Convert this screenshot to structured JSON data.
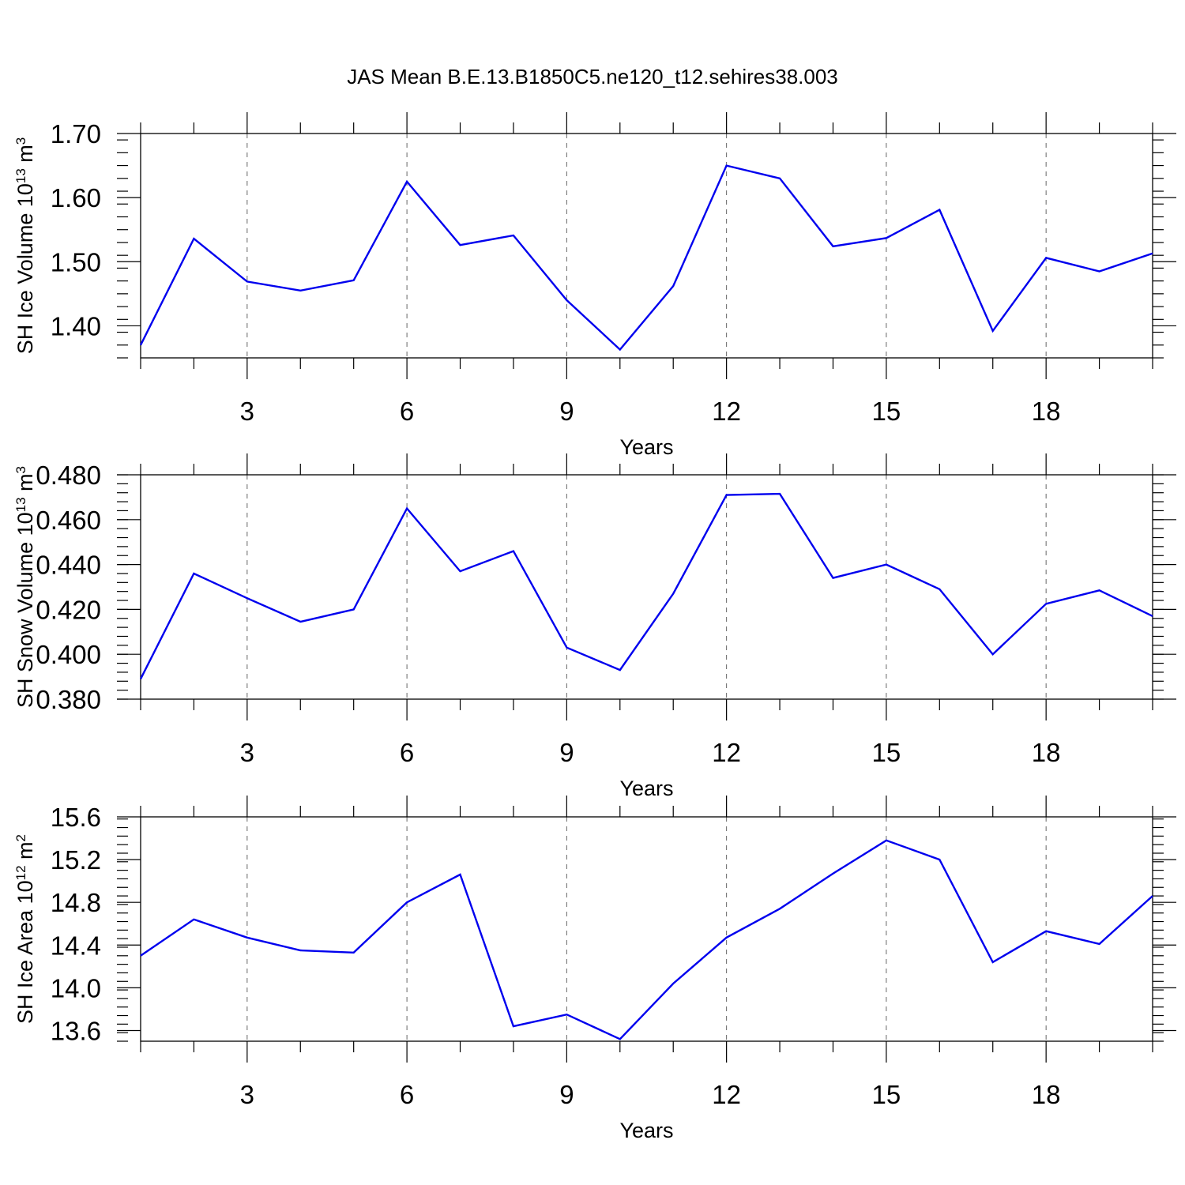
{
  "figure_title": "JAS Mean B.E.13.B1850C5.ne120_t12.sehires38.003",
  "line_color": "#0000ee",
  "chart_data": [
    {
      "type": "line",
      "title": "",
      "xlabel": "Years",
      "ylabel_parts": [
        {
          "text": "SH Ice Volume 10",
          "sup": false
        },
        {
          "text": "13",
          "sup": true
        },
        {
          "text": " m",
          "sup": false
        },
        {
          "text": "3",
          "sup": true
        }
      ],
      "x": [
        1,
        2,
        3,
        4,
        5,
        6,
        7,
        8,
        9,
        10,
        11,
        12,
        13,
        14,
        15,
        16,
        17,
        18,
        19,
        20
      ],
      "values": [
        1.37,
        1.536,
        1.469,
        1.455,
        1.471,
        1.625,
        1.526,
        1.541,
        1.44,
        1.363,
        1.462,
        1.65,
        1.63,
        1.524,
        1.537,
        1.581,
        1.392,
        1.506,
        1.485,
        1.513
      ],
      "xlim": [
        1,
        20
      ],
      "ylim": [
        1.35,
        1.7
      ],
      "xticks": [
        3,
        6,
        9,
        12,
        15,
        18
      ],
      "xtick_labels": [
        "3",
        "6",
        "9",
        "12",
        "15",
        "18"
      ],
      "yticks": [
        1.4,
        1.5,
        1.6,
        1.7
      ],
      "ytick_labels": [
        "1.40",
        "1.50",
        "1.60",
        "1.70"
      ],
      "y_minor_step": 0.02,
      "grid": "x-major-dashed"
    },
    {
      "type": "line",
      "title": "",
      "xlabel": "Years",
      "ylabel_parts": [
        {
          "text": "SH Snow Volume 10",
          "sup": false
        },
        {
          "text": "13",
          "sup": true
        },
        {
          "text": " m",
          "sup": false
        },
        {
          "text": "3",
          "sup": true
        }
      ],
      "x": [
        1,
        2,
        3,
        4,
        5,
        6,
        7,
        8,
        9,
        10,
        11,
        12,
        13,
        14,
        15,
        16,
        17,
        18,
        19,
        20
      ],
      "values": [
        0.389,
        0.436,
        0.425,
        0.4145,
        0.42,
        0.465,
        0.437,
        0.446,
        0.403,
        0.393,
        0.427,
        0.471,
        0.4715,
        0.434,
        0.44,
        0.429,
        0.4,
        0.4225,
        0.4285,
        0.417
      ],
      "xlim": [
        1,
        20
      ],
      "ylim": [
        0.38,
        0.48
      ],
      "xticks": [
        3,
        6,
        9,
        12,
        15,
        18
      ],
      "xtick_labels": [
        "3",
        "6",
        "9",
        "12",
        "15",
        "18"
      ],
      "yticks": [
        0.38,
        0.4,
        0.42,
        0.44,
        0.46,
        0.48
      ],
      "ytick_labels": [
        "0.380",
        "0.400",
        "0.420",
        "0.440",
        "0.460",
        "0.480"
      ],
      "y_minor_step": 0.004,
      "grid": "x-major-dashed"
    },
    {
      "type": "line",
      "title": "",
      "xlabel": "Years",
      "ylabel_parts": [
        {
          "text": "SH Ice Area 10",
          "sup": false
        },
        {
          "text": "12",
          "sup": true
        },
        {
          "text": " m",
          "sup": false
        },
        {
          "text": "2",
          "sup": true
        }
      ],
      "x": [
        1,
        2,
        3,
        4,
        5,
        6,
        7,
        8,
        9,
        10,
        11,
        12,
        13,
        14,
        15,
        16,
        17,
        18,
        19,
        20
      ],
      "values": [
        14.3,
        14.64,
        14.47,
        14.35,
        14.33,
        14.8,
        15.06,
        13.64,
        13.75,
        13.52,
        14.04,
        14.47,
        14.74,
        15.07,
        15.38,
        15.2,
        14.24,
        14.53,
        14.41,
        14.86
      ],
      "xlim": [
        1,
        20
      ],
      "ylim": [
        13.5,
        15.6
      ],
      "xticks": [
        3,
        6,
        9,
        12,
        15,
        18
      ],
      "xtick_labels": [
        "3",
        "6",
        "9",
        "12",
        "15",
        "18"
      ],
      "yticks": [
        13.6,
        14.0,
        14.4,
        14.8,
        15.2,
        15.6
      ],
      "ytick_labels": [
        "13.6",
        "14.0",
        "14.4",
        "14.8",
        "15.2",
        "15.6"
      ],
      "y_minor_step": 0.08,
      "grid": "x-major-dashed"
    }
  ]
}
